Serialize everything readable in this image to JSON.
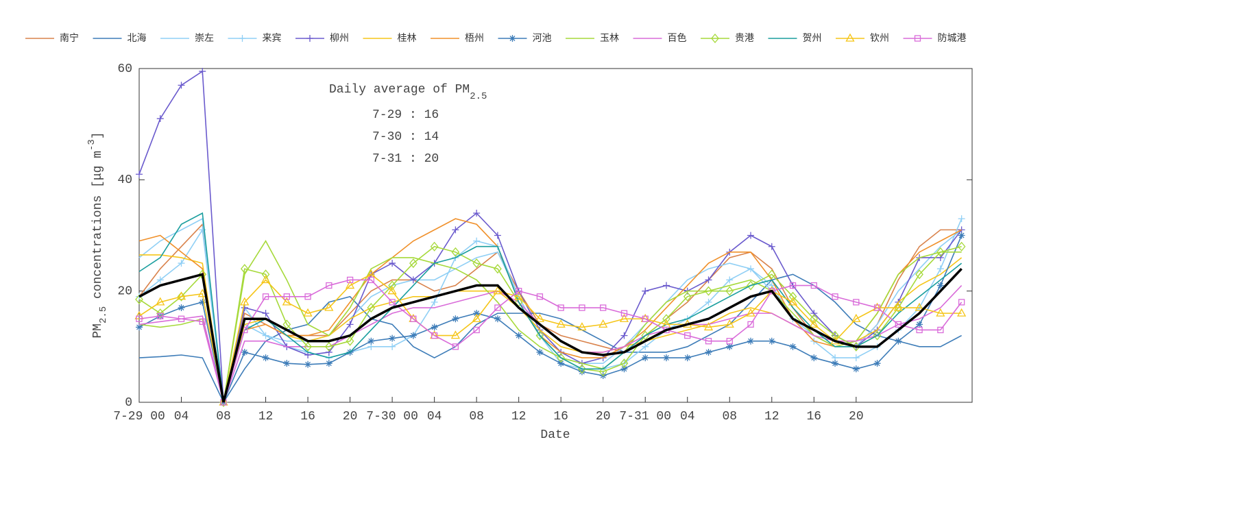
{
  "chart_data": {
    "type": "line",
    "annotation": {
      "title": "Daily average of PM",
      "title_sub": "2.5",
      "lines": [
        "7-29 : 16",
        "7-30 : 14",
        "7-31 : 20"
      ]
    },
    "xlabel": "Date",
    "ylabel": {
      "text": "PM",
      "sub": "2.5",
      "rest": " concentrations [μg m",
      "sup": "-3",
      "end": "]"
    },
    "x": [
      0,
      2,
      4,
      6,
      8,
      10,
      12,
      14,
      16,
      18,
      20,
      22,
      24,
      26,
      28,
      30,
      32,
      34,
      36,
      38,
      40,
      42,
      44,
      46,
      48,
      50,
      52,
      54,
      56,
      58,
      60,
      62,
      64,
      66,
      68,
      70,
      72,
      74,
      76,
      78
    ],
    "xlim": [
      0,
      79
    ],
    "xticks": [
      {
        "value": 0,
        "label": "7-29 00"
      },
      {
        "value": 4,
        "label": "04"
      },
      {
        "value": 8,
        "label": "08"
      },
      {
        "value": 12,
        "label": "12"
      },
      {
        "value": 16,
        "label": "16"
      },
      {
        "value": 20,
        "label": "20"
      },
      {
        "value": 24,
        "label": "7-30 00"
      },
      {
        "value": 28,
        "label": "04"
      },
      {
        "value": 32,
        "label": "08"
      },
      {
        "value": 36,
        "label": "12"
      },
      {
        "value": 40,
        "label": "16"
      },
      {
        "value": 44,
        "label": "20"
      },
      {
        "value": 48,
        "label": "7-31 00"
      },
      {
        "value": 52,
        "label": "04"
      },
      {
        "value": 56,
        "label": "08"
      },
      {
        "value": 60,
        "label": "12"
      },
      {
        "value": 64,
        "label": "16"
      },
      {
        "value": 68,
        "label": "20"
      }
    ],
    "ylim": [
      0,
      60
    ],
    "yticks": [
      0,
      20,
      40,
      60
    ],
    "average": {
      "color": "#000000",
      "values": [
        19,
        21,
        22,
        23,
        0,
        15,
        15,
        13,
        11,
        11,
        12,
        15,
        17,
        18,
        19,
        20,
        21,
        21,
        17,
        14,
        11,
        9,
        8.5,
        9,
        11,
        13,
        14,
        15,
        17,
        19,
        20,
        15,
        13,
        11,
        10,
        10,
        13,
        16,
        20,
        24
      ]
    },
    "series": [
      {
        "name": "南宁",
        "color": "#d9824b",
        "marker": "none",
        "values": [
          19,
          24,
          28,
          32,
          0,
          16,
          14,
          12,
          12,
          12,
          16,
          20,
          22,
          22,
          20,
          21,
          24,
          27,
          20,
          14,
          12,
          11,
          10,
          9,
          12,
          15,
          18,
          22,
          26,
          27,
          24,
          17,
          12,
          10,
          10,
          14,
          22,
          28,
          31,
          31
        ]
      },
      {
        "name": "北海",
        "color": "#3d7cb8",
        "marker": "none",
        "values": [
          8,
          8.2,
          8.5,
          8,
          0,
          6,
          11,
          13,
          14,
          18,
          19,
          15,
          14,
          10,
          8,
          10,
          14,
          16,
          16,
          16,
          15,
          13,
          11,
          9,
          9,
          9,
          10,
          12,
          14,
          18,
          22,
          23,
          21,
          18,
          14,
          12,
          11,
          10,
          10,
          12
        ]
      },
      {
        "name": "崇左",
        "color": "#8fcff5",
        "marker": "none",
        "values": [
          26,
          29,
          31,
          33,
          0,
          14,
          12,
          11,
          11,
          12,
          15,
          19,
          21,
          22,
          22,
          24,
          26,
          27,
          19,
          12,
          8,
          7,
          7,
          10,
          14,
          18,
          22,
          24,
          25,
          24,
          20,
          15,
          12,
          10,
          10,
          14,
          20,
          24,
          28,
          31
        ]
      },
      {
        "name": "来宾",
        "color": "#8fcff5",
        "marker": "plus",
        "values": [
          19,
          22,
          25,
          31,
          0,
          17,
          12,
          10,
          9,
          8,
          9,
          10,
          10,
          12,
          18,
          26,
          29,
          28,
          19,
          12,
          7,
          6,
          6,
          7,
          10,
          13,
          15,
          18,
          22,
          24,
          21,
          15,
          11,
          8,
          8,
          10,
          13,
          17,
          24,
          33
        ]
      },
      {
        "name": "柳州",
        "color": "#6a5acd",
        "marker": "plus",
        "values": [
          41,
          51,
          57,
          59.5,
          0,
          17,
          16,
          10,
          8.5,
          9,
          14,
          23,
          25,
          22,
          25,
          31,
          34,
          30,
          20,
          13,
          9,
          7,
          8,
          12,
          20,
          21,
          20,
          22,
          27,
          30,
          28,
          21,
          16,
          12,
          10,
          13,
          18,
          26,
          26,
          31
        ]
      },
      {
        "name": "桂林",
        "color": "#f5c518",
        "marker": "none",
        "values": [
          26.5,
          26.5,
          26,
          25,
          0,
          14,
          15,
          12,
          11,
          12,
          15,
          17,
          18,
          19,
          19,
          20,
          20,
          20,
          17,
          13,
          10,
          9,
          9,
          10,
          11,
          12,
          13,
          14,
          16,
          17,
          16,
          14,
          12,
          11,
          11,
          13,
          18,
          21,
          23,
          26
        ]
      },
      {
        "name": "梧州",
        "color": "#f0902a",
        "marker": "none",
        "values": [
          29,
          30,
          27,
          24,
          0,
          13,
          14,
          12,
          12,
          13,
          18,
          23,
          26,
          29,
          31,
          33,
          32,
          28,
          18,
          12,
          9,
          8,
          8,
          10,
          13,
          17,
          21,
          25,
          27,
          27,
          22,
          15,
          11,
          10,
          11,
          16,
          23,
          27,
          29,
          31
        ]
      },
      {
        "name": "河池",
        "color": "#3d7cb8",
        "marker": "star",
        "values": [
          13.5,
          15.5,
          17,
          18,
          0,
          9,
          8,
          7,
          6.8,
          7,
          9,
          11,
          11.5,
          12,
          13.5,
          15,
          16,
          15,
          12,
          9,
          7,
          5.5,
          4.8,
          6,
          8,
          8,
          8,
          9,
          10,
          11,
          11,
          10,
          8,
          7,
          6,
          7,
          11,
          14,
          21,
          30
        ]
      },
      {
        "name": "玉林",
        "color": "#a6d93a",
        "marker": "none",
        "values": [
          14,
          13.5,
          14,
          15,
          0,
          23,
          29,
          22,
          14,
          12,
          17,
          24,
          26,
          26,
          25,
          24,
          22,
          18,
          13,
          10,
          8,
          7,
          6,
          9,
          14,
          18,
          20,
          20,
          21,
          22,
          20,
          16,
          12,
          10,
          11,
          16,
          23,
          26,
          27,
          27
        ]
      },
      {
        "name": "百色",
        "color": "#d96bd9",
        "marker": "none",
        "values": [
          14,
          14.5,
          15,
          15.5,
          0,
          11,
          11,
          10,
          10,
          10,
          12,
          14,
          16,
          17,
          17,
          18,
          19,
          20,
          18,
          14,
          11,
          9,
          9,
          10,
          12,
          13,
          14,
          14,
          15,
          16,
          16,
          14,
          12,
          11,
          11,
          12,
          14,
          15,
          17,
          21
        ]
      },
      {
        "name": "贵港",
        "color": "#a6d93a",
        "marker": "diamond",
        "values": [
          18.5,
          16,
          19,
          23,
          0,
          24,
          23,
          14,
          10,
          10,
          11,
          17,
          21,
          25,
          28,
          27,
          25,
          24,
          18,
          12,
          8,
          6,
          5.5,
          7,
          12,
          15,
          19,
          20,
          20,
          21,
          23,
          19,
          15,
          12,
          10,
          12,
          17,
          23,
          27,
          28
        ]
      },
      {
        "name": "贺州",
        "color": "#1a9e9e",
        "marker": "none",
        "values": [
          23.5,
          26,
          32,
          34,
          0,
          13,
          15,
          12,
          9,
          8,
          9,
          13,
          17,
          21,
          25,
          26,
          28,
          28,
          18,
          12,
          8,
          6,
          6,
          9,
          12,
          14,
          15,
          17,
          19,
          21,
          22,
          17,
          13,
          10,
          10,
          12,
          16,
          19,
          22,
          25
        ]
      },
      {
        "name": "钦州",
        "color": "#f5c518",
        "marker": "triangle",
        "values": [
          15.5,
          18,
          19,
          19.5,
          0,
          18,
          22,
          18,
          16,
          17,
          21,
          23,
          20,
          15,
          12,
          12,
          15,
          20,
          19,
          15,
          14,
          13.5,
          14,
          15,
          15,
          14,
          14,
          13.5,
          14,
          16,
          20,
          18,
          14,
          11,
          15,
          17,
          17,
          17,
          16,
          16
        ]
      },
      {
        "name": "防城港",
        "color": "#d96bd9",
        "marker": "square",
        "values": [
          15,
          15.5,
          15,
          14.5,
          0,
          13,
          19,
          19,
          19,
          21,
          22,
          22,
          18,
          15,
          12,
          10,
          13,
          17,
          20,
          19,
          17,
          17,
          17,
          16,
          15,
          13,
          12,
          11,
          11,
          14,
          20,
          21,
          21,
          19,
          18,
          17,
          14,
          13,
          13,
          18
        ]
      }
    ]
  }
}
